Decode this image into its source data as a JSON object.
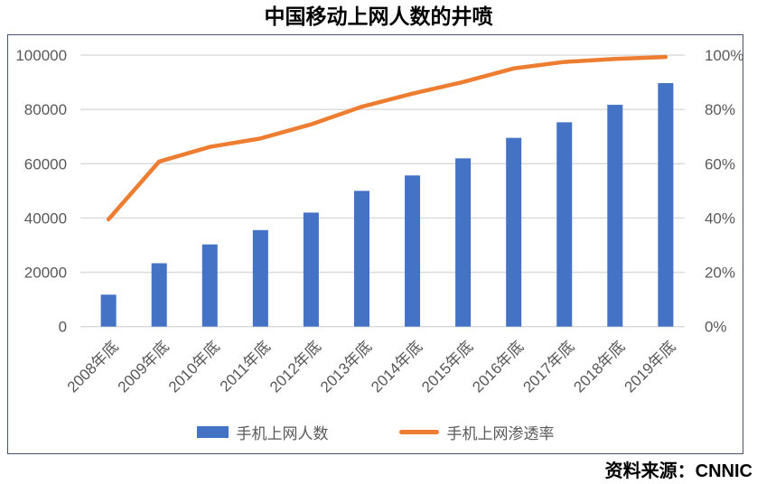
{
  "source_note": "资料来源：CNNIC",
  "colors": {
    "bar": "#4472C4",
    "line": "#ED7D31",
    "grid": "#D9D9D9",
    "axis_text": "#595959",
    "border": "#44546A",
    "title_text": "#000000"
  },
  "chart_data": {
    "type": "bar",
    "subtype": "combo-bar-line-dual-axis",
    "title": "中国移动上网人数的井喷",
    "categories": [
      "2008年底",
      "2009年底",
      "2010年底",
      "2011年底",
      "2012年底",
      "2013年底",
      "2014年底",
      "2015年底",
      "2016年底",
      "2017年底",
      "2018年底",
      "2019年底"
    ],
    "series": [
      {
        "name": "手机上网人数",
        "type": "bar",
        "axis": "left",
        "color": "#4472C4",
        "values": [
          11760,
          23344,
          30274,
          35558,
          41997,
          50006,
          55678,
          61981,
          69531,
          75265,
          81698,
          89690
        ]
      },
      {
        "name": "手机上网渗透率",
        "type": "line",
        "axis": "right",
        "color": "#ED7D31",
        "values": [
          39.5,
          60.8,
          66.2,
          69.3,
          74.5,
          81.0,
          85.8,
          90.1,
          95.1,
          97.5,
          98.6,
          99.3
        ]
      }
    ],
    "left_axis": {
      "min": 0,
      "max": 100000,
      "step": 20000,
      "tick_labels": [
        "0",
        "20000",
        "40000",
        "60000",
        "80000",
        "100000"
      ]
    },
    "right_axis": {
      "min": 0,
      "max": 100,
      "step": 20,
      "tick_labels": [
        "0%",
        "20%",
        "40%",
        "60%",
        "80%",
        "100%"
      ]
    },
    "grid": true,
    "legend_position": "bottom"
  }
}
